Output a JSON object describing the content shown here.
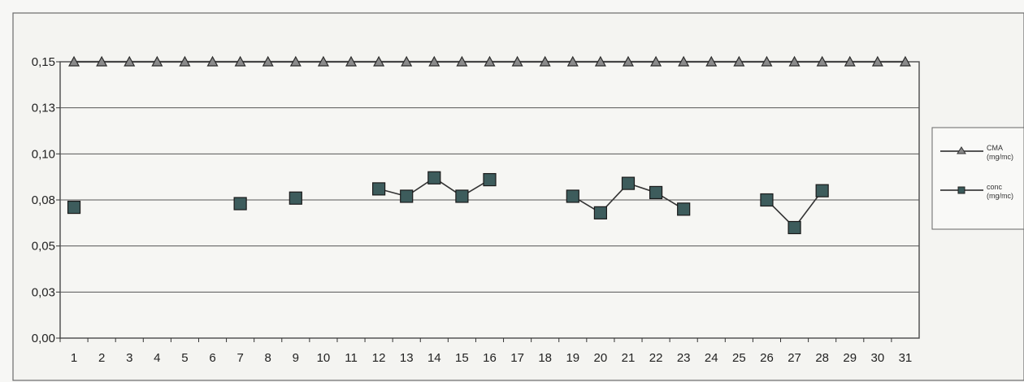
{
  "chart_data": {
    "type": "line",
    "title": "",
    "xlabel": "",
    "ylabel": "",
    "categories": [
      "1",
      "2",
      "3",
      "4",
      "5",
      "6",
      "7",
      "8",
      "9",
      "10",
      "11",
      "12",
      "13",
      "14",
      "15",
      "16",
      "17",
      "18",
      "19",
      "20",
      "21",
      "22",
      "23",
      "24",
      "25",
      "26",
      "27",
      "28",
      "29",
      "30",
      "31"
    ],
    "yticks": [
      "0,15",
      "0,13",
      "0,10",
      "0,08",
      "0,05",
      "0,03",
      "0,00"
    ],
    "ylim": [
      0,
      0.15
    ],
    "grid": true,
    "legend_position": "right",
    "series": [
      {
        "name": "CMA",
        "name_line2": "(mg/mc)",
        "marker": "triangle",
        "color": "#555555",
        "values": [
          0.15,
          0.15,
          0.15,
          0.15,
          0.15,
          0.15,
          0.15,
          0.15,
          0.15,
          0.15,
          0.15,
          0.15,
          0.15,
          0.15,
          0.15,
          0.15,
          0.15,
          0.15,
          0.15,
          0.15,
          0.15,
          0.15,
          0.15,
          0.15,
          0.15,
          0.15,
          0.15,
          0.15,
          0.15,
          0.15,
          0.15
        ]
      },
      {
        "name": "conc",
        "name_line2": "(mg/mc)",
        "marker": "square",
        "color": "#2f4f4f",
        "values": [
          0.071,
          null,
          null,
          null,
          null,
          null,
          0.073,
          null,
          0.076,
          null,
          null,
          0.081,
          0.077,
          0.087,
          0.077,
          0.086,
          null,
          null,
          0.077,
          0.068,
          0.084,
          0.079,
          0.07,
          null,
          null,
          0.075,
          0.06,
          0.08,
          null,
          null,
          null
        ]
      }
    ]
  }
}
